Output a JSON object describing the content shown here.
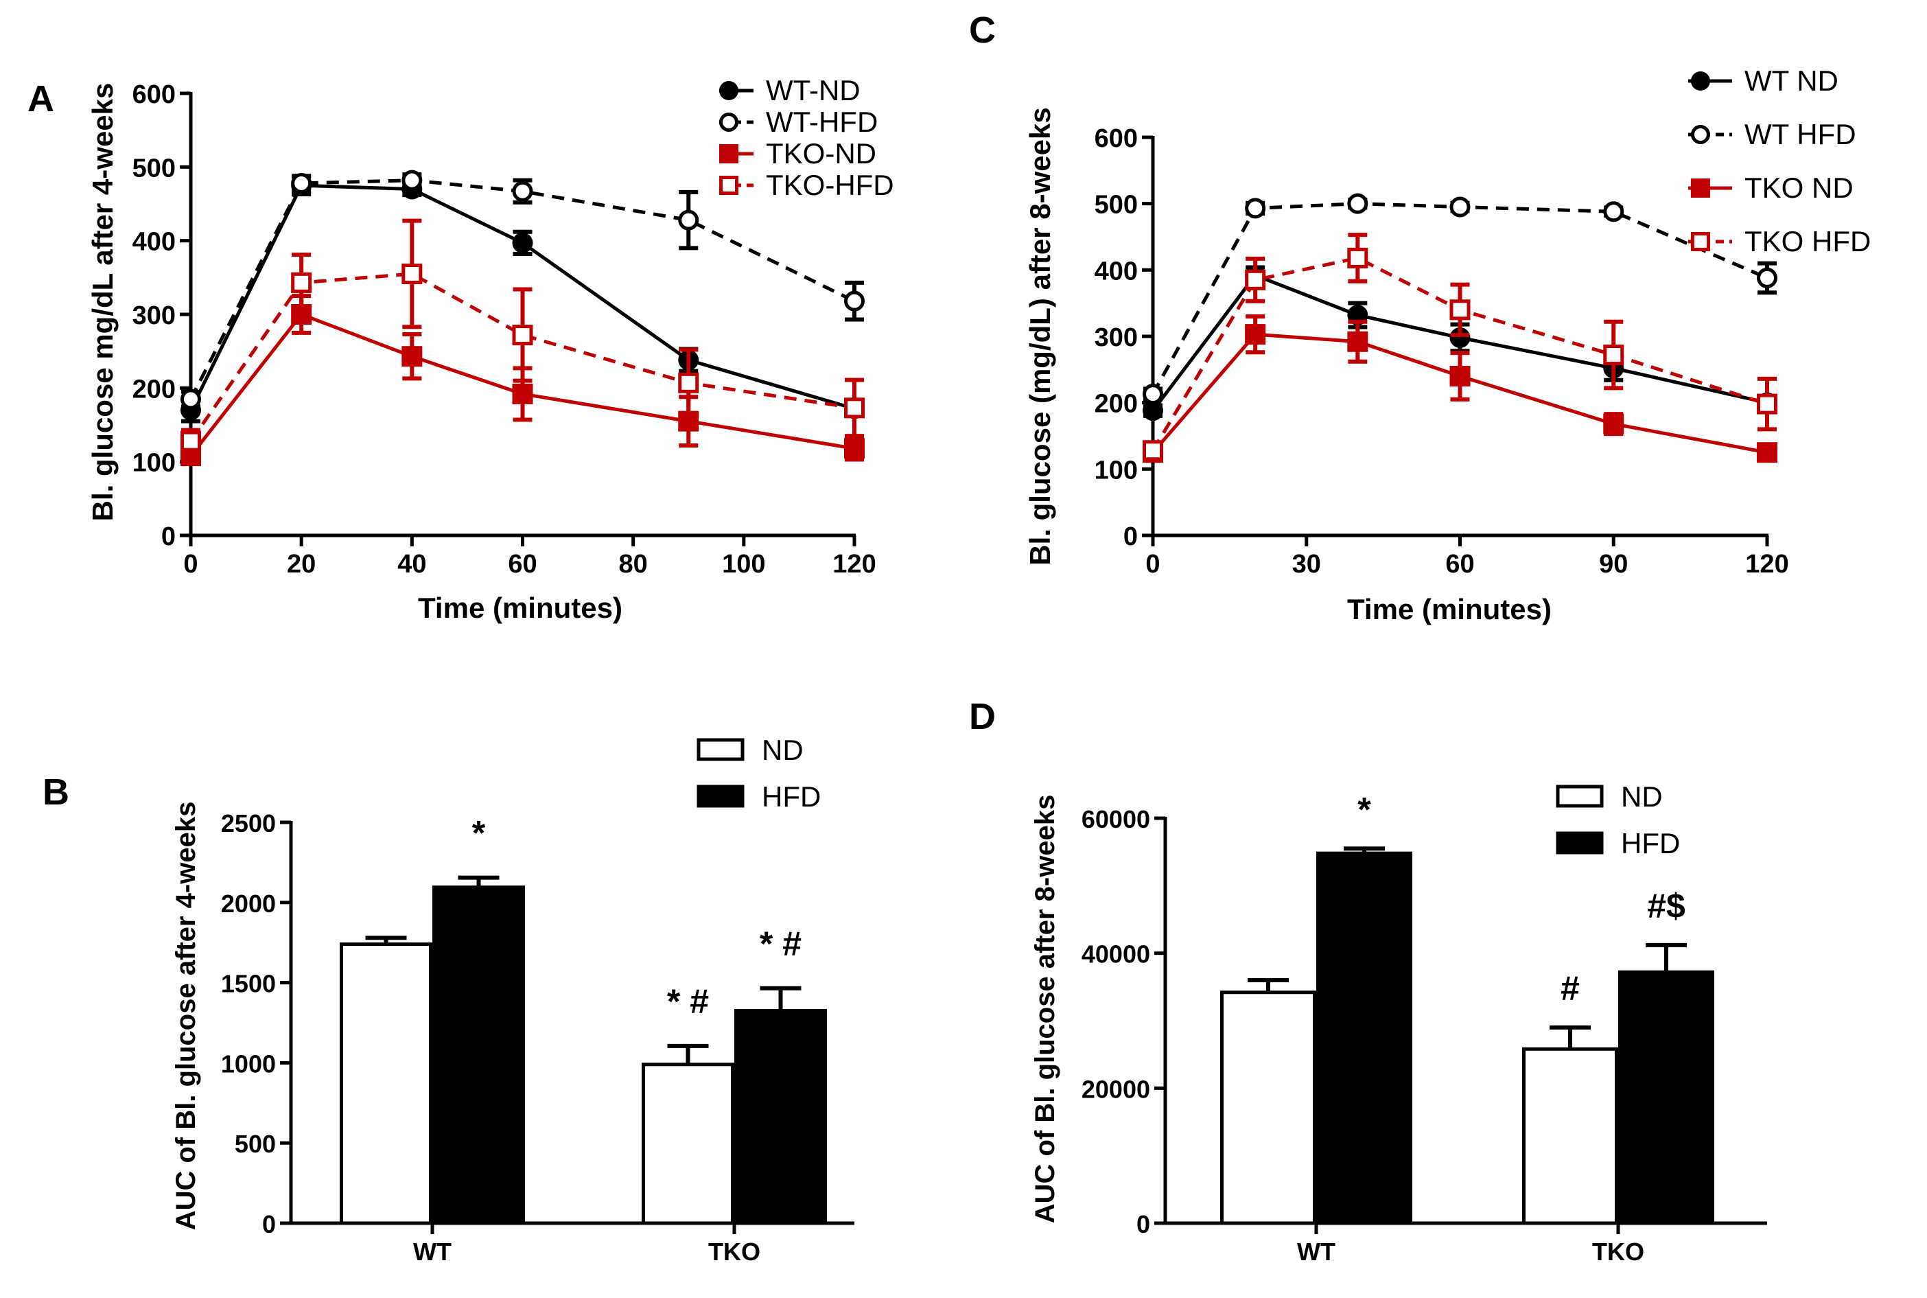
{
  "figure": {
    "panel_labels": [
      "A",
      "B",
      "C",
      "D"
    ]
  },
  "colors": {
    "black": "#000000",
    "red": "#c00000",
    "white": "#ffffff"
  },
  "chart_data": [
    {
      "panel": "A",
      "type": "line",
      "xlabel": "Time (minutes)",
      "ylabel": "Bl. glucose mg/dL after 4-weeks",
      "xlim": [
        0,
        120
      ],
      "ylim": [
        0,
        600
      ],
      "xticks": [
        0,
        20,
        40,
        60,
        80,
        100,
        120
      ],
      "yticks": [
        0,
        100,
        200,
        300,
        400,
        500,
        600
      ],
      "legend_position": "top-right",
      "series": [
        {
          "name": "WT-ND",
          "color": "#000000",
          "marker": "circle",
          "filled": true,
          "dashed": false,
          "x": [
            0,
            20,
            40,
            60,
            90,
            120
          ],
          "y": [
            170,
            475,
            470,
            397,
            238,
            172
          ],
          "err": [
            15,
            12,
            8,
            15,
            15,
            5
          ]
        },
        {
          "name": "WT-HFD",
          "color": "#000000",
          "marker": "circle",
          "filled": false,
          "dashed": true,
          "x": [
            0,
            20,
            40,
            60,
            90,
            120
          ],
          "y": [
            185,
            478,
            482,
            467,
            428,
            318
          ],
          "err": [
            10,
            10,
            8,
            15,
            38,
            25
          ]
        },
        {
          "name": "TKO-ND",
          "color": "#c00000",
          "marker": "square",
          "filled": true,
          "dashed": false,
          "x": [
            0,
            20,
            40,
            60,
            90,
            120
          ],
          "y": [
            108,
            300,
            243,
            192,
            155,
            118
          ],
          "err": [
            10,
            25,
            30,
            35,
            33,
            15
          ]
        },
        {
          "name": "TKO-HFD",
          "color": "#c00000",
          "marker": "square",
          "filled": false,
          "dashed": true,
          "x": [
            0,
            20,
            40,
            60,
            90,
            120
          ],
          "y": [
            128,
            343,
            355,
            272,
            207,
            173
          ],
          "err": [
            15,
            38,
            72,
            62,
            45,
            38
          ]
        }
      ]
    },
    {
      "panel": "B",
      "type": "bar",
      "ylabel": "AUC of Bl. glucose after 4-weeks",
      "ylim": [
        0,
        2500
      ],
      "yticks": [
        0,
        500,
        1000,
        1500,
        2000,
        2500
      ],
      "categories": [
        "WT",
        "TKO"
      ],
      "legend_position": "top-right",
      "series": [
        {
          "name": "ND",
          "fill": "#ffffff",
          "values": [
            1740,
            990
          ],
          "err": [
            40,
            115
          ]
        },
        {
          "name": "HFD",
          "fill": "#000000",
          "values": [
            2095,
            1325
          ],
          "err": [
            60,
            140
          ]
        }
      ],
      "annotations": [
        {
          "category": 0,
          "series": 1,
          "text": "*"
        },
        {
          "category": 1,
          "series": 0,
          "text": "* #"
        },
        {
          "category": 1,
          "series": 1,
          "text": "* #"
        }
      ]
    },
    {
      "panel": "C",
      "type": "line",
      "xlabel": "Time (minutes)",
      "ylabel": "Bl. glucose (mg/dL) after 8-weeks",
      "xlim": [
        0,
        120
      ],
      "ylim": [
        0,
        600
      ],
      "xticks": [
        0,
        30,
        60,
        90,
        120
      ],
      "yticks": [
        0,
        100,
        200,
        300,
        400,
        500,
        600
      ],
      "legend_position": "top-right",
      "series": [
        {
          "name": "WT ND",
          "color": "#000000",
          "marker": "circle",
          "filled": true,
          "dashed": false,
          "x": [
            0,
            20,
            40,
            60,
            90,
            120
          ],
          "y": [
            188,
            392,
            332,
            298,
            252,
            200
          ],
          "err": [
            8,
            12,
            18,
            20,
            18,
            10
          ]
        },
        {
          "name": "WT HFD",
          "color": "#000000",
          "marker": "circle",
          "filled": false,
          "dashed": true,
          "x": [
            0,
            20,
            40,
            60,
            90,
            120
          ],
          "y": [
            213,
            493,
            500,
            495,
            488,
            388
          ],
          "err": [
            8,
            8,
            6,
            6,
            6,
            22
          ]
        },
        {
          "name": "TKO ND",
          "color": "#c00000",
          "marker": "square",
          "filled": true,
          "dashed": false,
          "x": [
            0,
            20,
            40,
            60,
            90,
            120
          ],
          "y": [
            125,
            303,
            292,
            240,
            168,
            125
          ],
          "err": [
            8,
            27,
            30,
            35,
            15,
            10
          ]
        },
        {
          "name": "TKO HFD",
          "color": "#c00000",
          "marker": "square",
          "filled": false,
          "dashed": true,
          "x": [
            0,
            20,
            40,
            60,
            90,
            120
          ],
          "y": [
            128,
            385,
            418,
            340,
            272,
            198
          ],
          "err": [
            8,
            32,
            35,
            38,
            50,
            38
          ]
        }
      ]
    },
    {
      "panel": "D",
      "type": "bar",
      "ylabel": "AUC of Bl. glucose after 8-weeks",
      "ylim": [
        0,
        60000
      ],
      "yticks": [
        0,
        20000,
        40000,
        60000
      ],
      "categories": [
        "WT",
        "TKO"
      ],
      "legend_position": "top-right",
      "series": [
        {
          "name": "ND",
          "fill": "#ffffff",
          "values": [
            34200,
            25800
          ],
          "err": [
            1800,
            3200
          ]
        },
        {
          "name": "HFD",
          "fill": "#000000",
          "values": [
            54800,
            37200
          ],
          "err": [
            700,
            4000
          ]
        }
      ],
      "annotations": [
        {
          "category": 0,
          "series": 1,
          "text": "*"
        },
        {
          "category": 1,
          "series": 0,
          "text": "#"
        },
        {
          "category": 1,
          "series": 1,
          "text": "#$"
        }
      ]
    }
  ]
}
